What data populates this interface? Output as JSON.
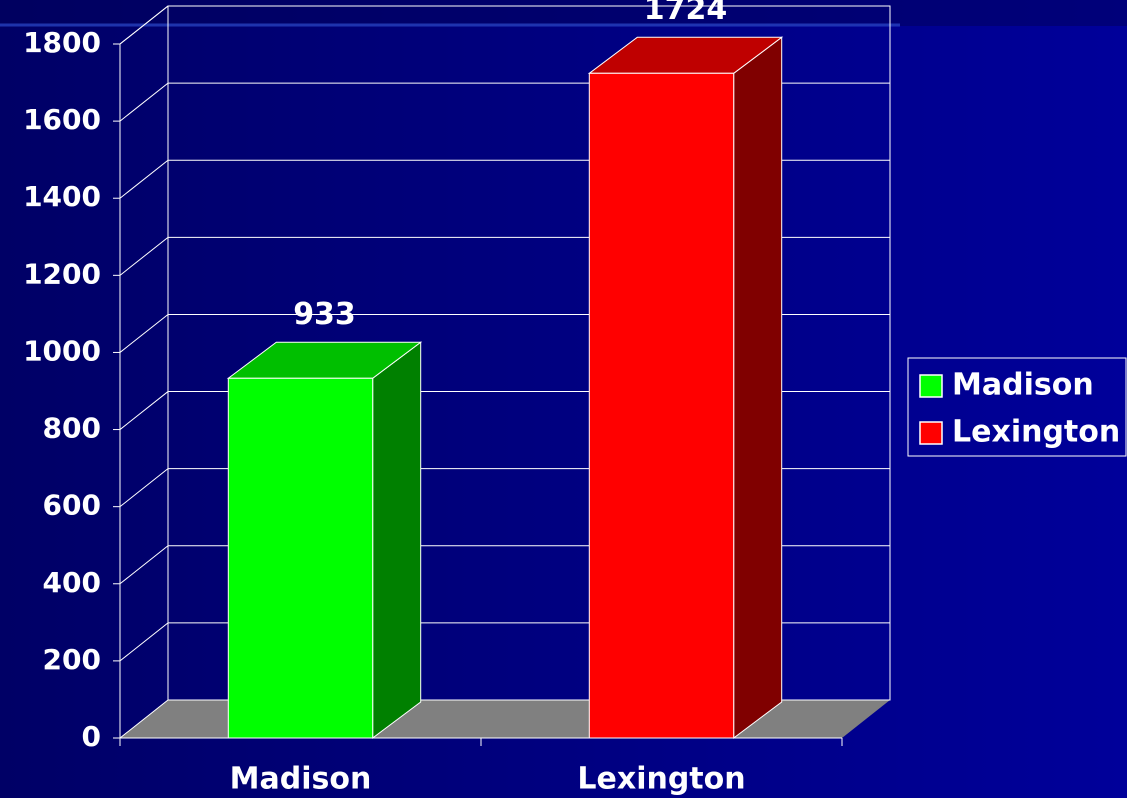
{
  "chart_data": {
    "type": "bar3d",
    "categories": [
      "Madison",
      "Lexington"
    ],
    "series": [
      {
        "name": "Madison",
        "color": "#00ff00",
        "values": [
          933,
          null
        ]
      },
      {
        "name": "Lexington",
        "color": "#ff0000",
        "values": [
          null,
          1724
        ]
      }
    ],
    "ylim": [
      0,
      1800
    ],
    "yticks": [
      0,
      200,
      400,
      600,
      800,
      1000,
      1200,
      1400,
      1600,
      1800
    ],
    "grid": true,
    "legend": "right"
  }
}
